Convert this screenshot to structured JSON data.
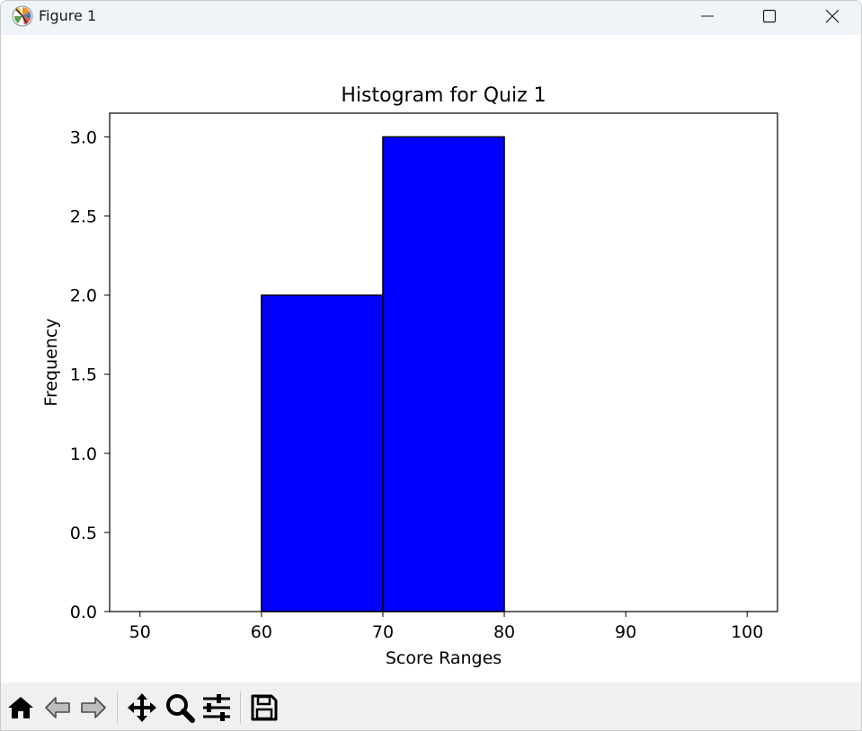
{
  "window": {
    "title": "Figure 1",
    "app_icon": "matplotlib-icon",
    "controls": [
      "minimize-icon",
      "maximize-icon",
      "close-icon"
    ]
  },
  "toolbar": {
    "buttons": [
      "home-icon",
      "back-icon",
      "forward-icon",
      "pan-icon",
      "zoom-icon",
      "configure-subplots-icon",
      "save-icon"
    ]
  },
  "colors": {
    "bar_fill": "#0000ff",
    "bar_edge": "#000000"
  },
  "chart_data": {
    "type": "bar",
    "title": "Histogram for Quiz 1",
    "xlabel": "Score Ranges",
    "ylabel": "Frequency",
    "bins": [
      {
        "start": 50,
        "end": 60,
        "count": 0
      },
      {
        "start": 60,
        "end": 70,
        "count": 2
      },
      {
        "start": 70,
        "end": 80,
        "count": 3
      },
      {
        "start": 80,
        "end": 90,
        "count": 0
      },
      {
        "start": 90,
        "end": 100,
        "count": 0
      }
    ],
    "xlim": [
      47.5,
      102.5
    ],
    "ylim": [
      0,
      3.15
    ],
    "xticks": [
      50,
      60,
      70,
      80,
      90,
      100
    ],
    "xtick_labels": [
      "50",
      "60",
      "70",
      "80",
      "90",
      "100"
    ],
    "yticks": [
      0,
      0.5,
      1,
      1.5,
      2,
      2.5,
      3
    ],
    "ytick_labels": [
      "0.0",
      "0.5",
      "1.0",
      "1.5",
      "2.0",
      "2.5",
      "3.0"
    ],
    "grid": false,
    "legend": false
  }
}
